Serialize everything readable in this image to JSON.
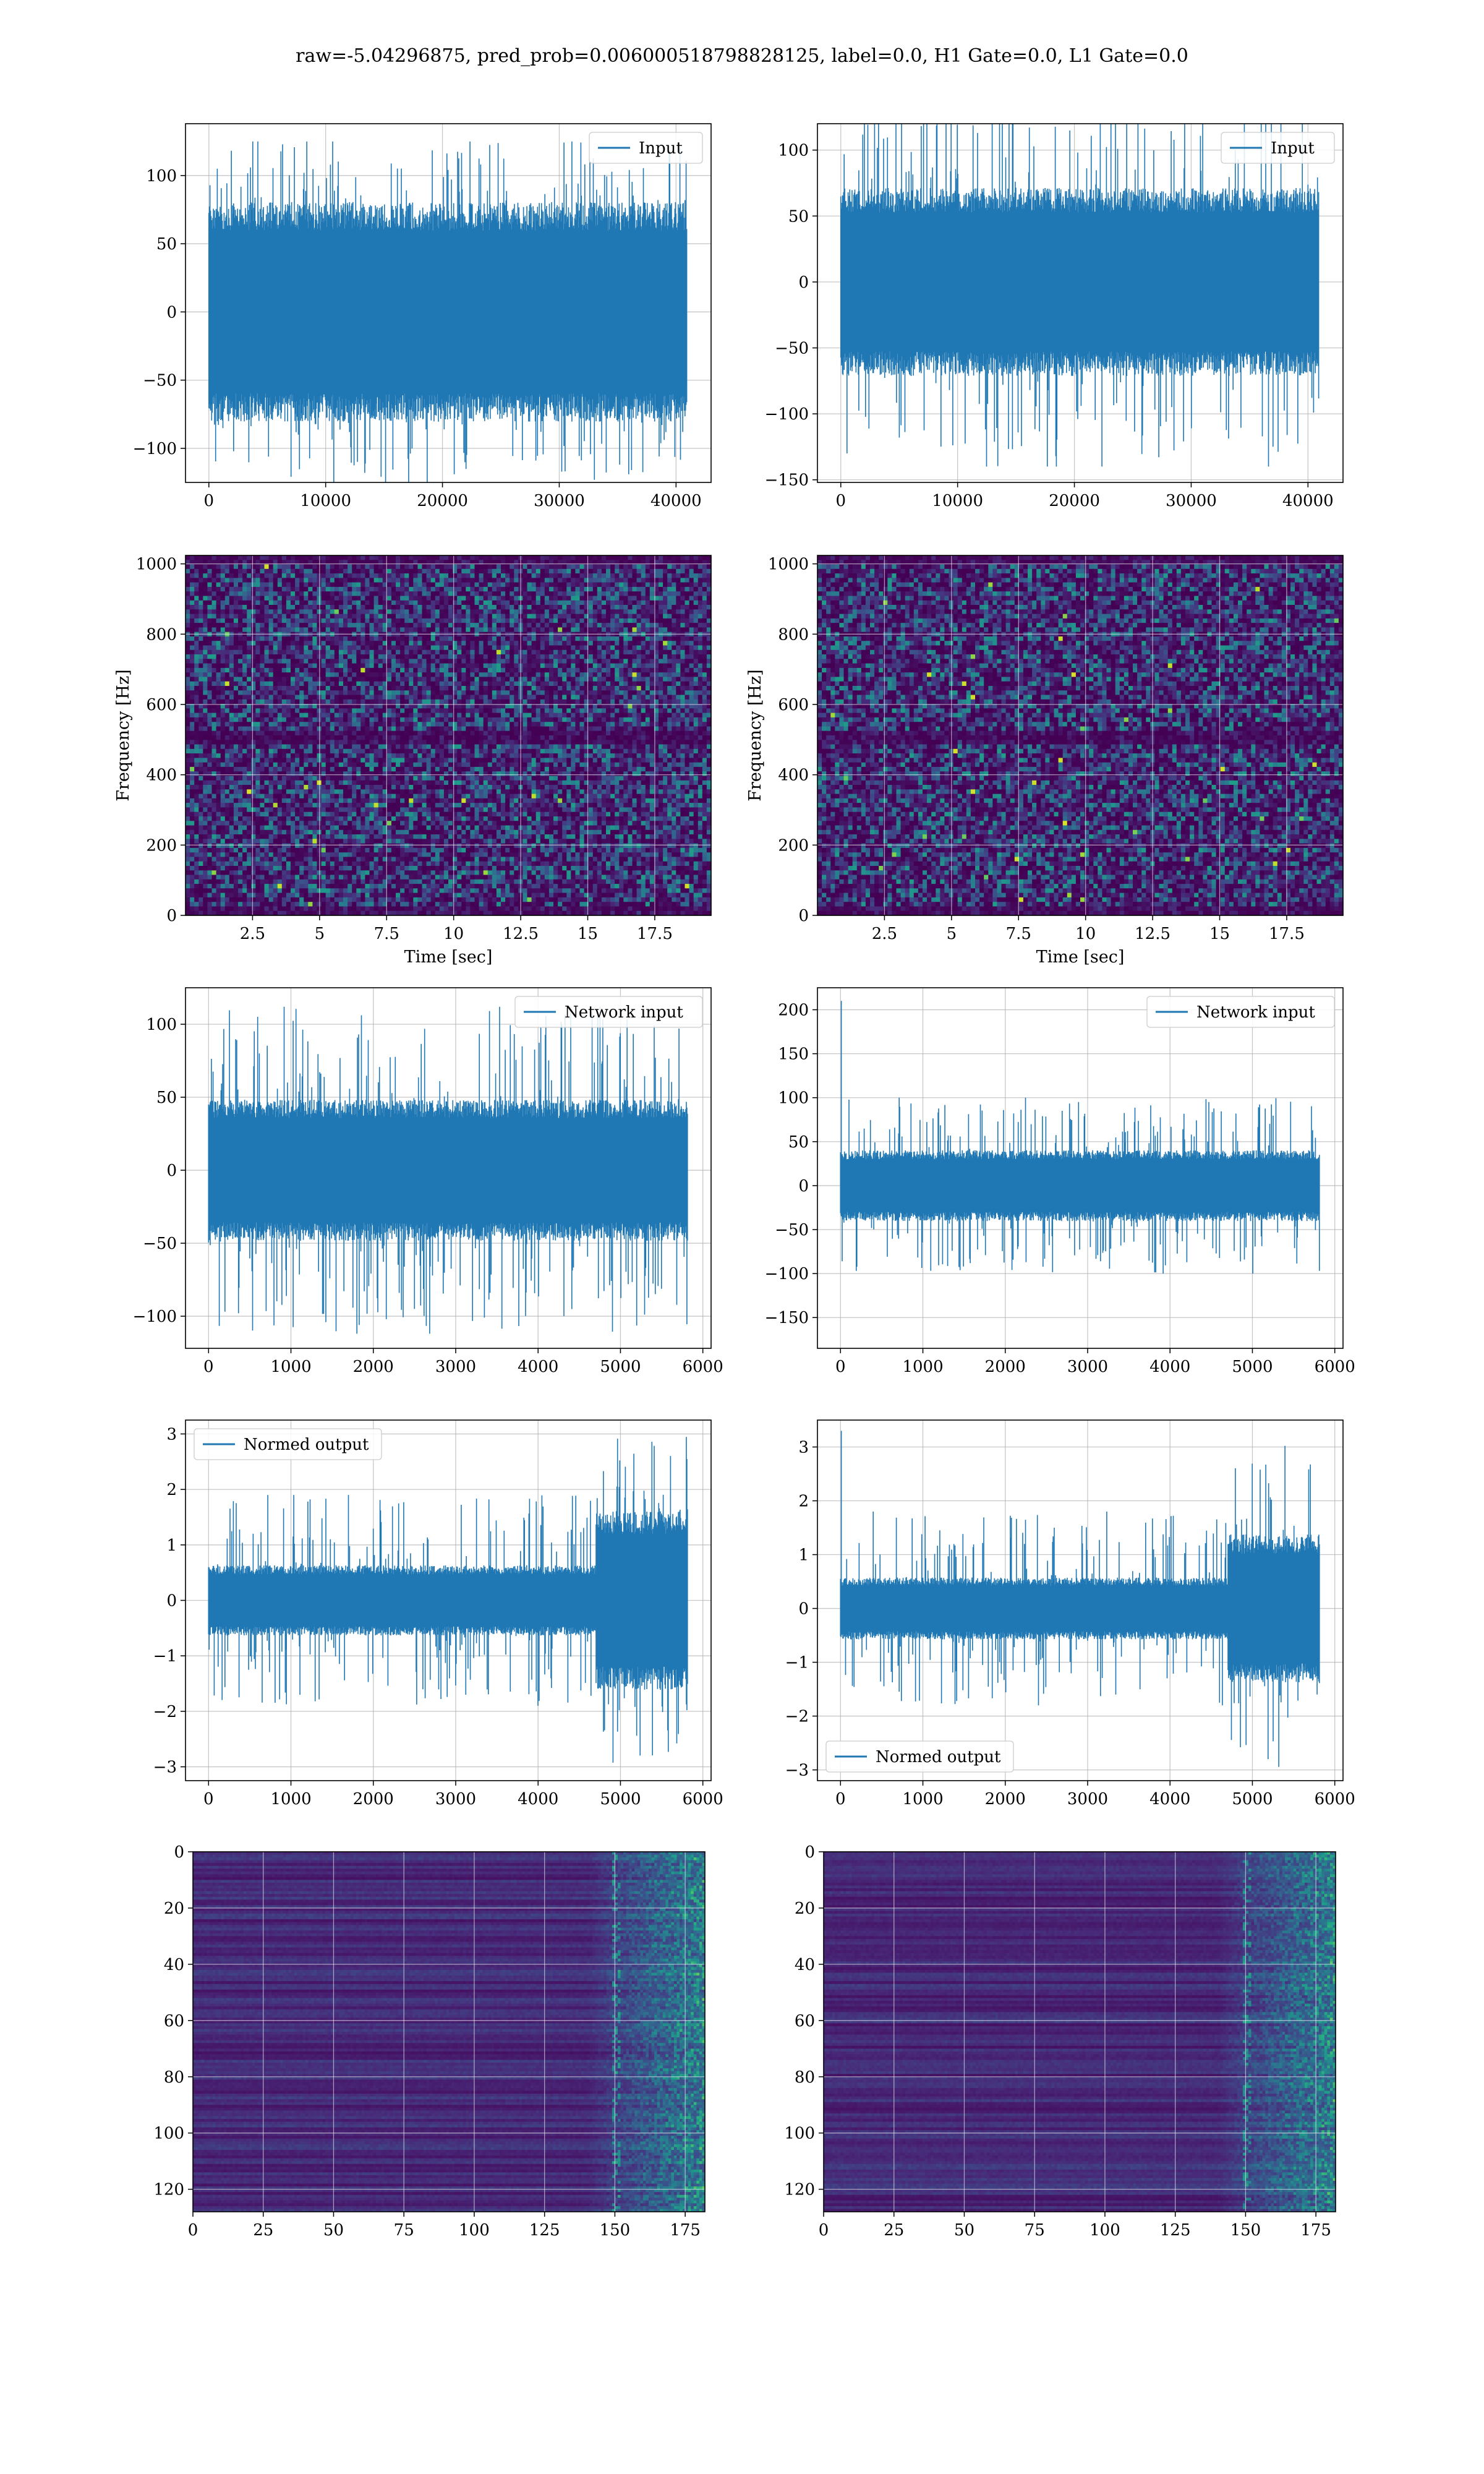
{
  "figure_title": "raw=-5.04296875, pred_prob=0.006000518798828125, label=0.0, H1 Gate=0.0, L1 Gate=0.0",
  "colors": {
    "line": "#1f77b4",
    "grid": "#b0b0b0",
    "viridis_low": "#440154",
    "viridis_high": "#fde725"
  },
  "chart_data": [
    {
      "id": "input-h1",
      "type": "line",
      "xlim": [
        -2000,
        43000
      ],
      "ylim": [
        -125,
        138
      ],
      "xticks": [
        0,
        10000,
        20000,
        30000,
        40000
      ],
      "yticks": [
        -100,
        -50,
        0,
        50,
        100
      ],
      "legend": "Input",
      "legend_loc": "top-right",
      "grid": true,
      "xlabel": "",
      "ylabel": "",
      "signal": {
        "n": 40960,
        "band": 70,
        "peak": 125,
        "bursts": []
      }
    },
    {
      "id": "input-l1",
      "type": "line",
      "xlim": [
        -2000,
        43000
      ],
      "ylim": [
        -152,
        120
      ],
      "xticks": [
        0,
        10000,
        20000,
        30000,
        40000
      ],
      "yticks": [
        -150,
        -100,
        -50,
        0,
        50,
        100
      ],
      "legend": "Input",
      "legend_loc": "top-right",
      "grid": true,
      "xlabel": "",
      "ylabel": "",
      "signal": {
        "n": 40960,
        "band": 62,
        "peak": 140,
        "bursts": []
      }
    },
    {
      "id": "spectrogram-h1",
      "type": "heatmap",
      "xlim": [
        0,
        19.6
      ],
      "ylim": [
        0,
        1024
      ],
      "xticks": [
        2.5,
        5.0,
        7.5,
        10.0,
        12.5,
        15.0,
        17.5
      ],
      "yticks": [
        0,
        200,
        400,
        600,
        800,
        1000
      ],
      "xlabel": "Time [sec]",
      "ylabel": "Frequency [Hz]",
      "grid": true
    },
    {
      "id": "spectrogram-l1",
      "type": "heatmap",
      "xlim": [
        0,
        19.6
      ],
      "ylim": [
        0,
        1024
      ],
      "xticks": [
        2.5,
        5.0,
        7.5,
        10.0,
        12.5,
        15.0,
        17.5
      ],
      "yticks": [
        0,
        200,
        400,
        600,
        800,
        1000
      ],
      "xlabel": "Time [sec]",
      "ylabel": "Frequency [Hz]",
      "grid": true
    },
    {
      "id": "network-input-h1",
      "type": "line",
      "xlim": [
        -280,
        6100
      ],
      "ylim": [
        -122,
        125
      ],
      "xticks": [
        0,
        1000,
        2000,
        3000,
        4000,
        5000,
        6000
      ],
      "yticks": [
        -100,
        -50,
        0,
        50,
        100
      ],
      "legend": "Network input",
      "legend_loc": "top-right",
      "grid": true,
      "xlabel": "",
      "ylabel": "",
      "signal": {
        "n": 5820,
        "band": 42,
        "peak": 112,
        "bursts": []
      }
    },
    {
      "id": "network-input-l1",
      "type": "line",
      "xlim": [
        -280,
        6100
      ],
      "ylim": [
        -185,
        225
      ],
      "xticks": [
        0,
        1000,
        2000,
        3000,
        4000,
        5000,
        6000
      ],
      "yticks": [
        -150,
        -100,
        -50,
        0,
        50,
        100,
        150,
        200
      ],
      "legend": "Network input",
      "legend_loc": "top-right",
      "grid": true,
      "xlabel": "",
      "ylabel": "",
      "signal": {
        "n": 5820,
        "band": 35,
        "peak": 100,
        "spike": [
          10,
          210
        ],
        "bursts": []
      }
    },
    {
      "id": "normed-output-h1",
      "type": "line",
      "xlim": [
        -280,
        6100
      ],
      "ylim": [
        -3.25,
        3.25
      ],
      "xticks": [
        0,
        1000,
        2000,
        3000,
        4000,
        5000,
        6000
      ],
      "yticks": [
        -3,
        -2,
        -1,
        0,
        1,
        2,
        3
      ],
      "legend": "Normed output",
      "legend_loc": "top-left",
      "grid": true,
      "xlabel": "",
      "ylabel": "",
      "signal": {
        "n": 5820,
        "band": 0.55,
        "peak": 1.9,
        "bursts": [
          [
            4700,
            5820,
            1.4,
            2.95
          ]
        ]
      }
    },
    {
      "id": "normed-output-l1",
      "type": "line",
      "xlim": [
        -280,
        6100
      ],
      "ylim": [
        -3.2,
        3.5
      ],
      "xticks": [
        0,
        1000,
        2000,
        3000,
        4000,
        5000,
        6000
      ],
      "yticks": [
        -3,
        -2,
        -1,
        0,
        1,
        2,
        3
      ],
      "legend": "Normed output",
      "legend_loc": "bottom-left",
      "grid": true,
      "xlabel": "",
      "ylabel": "",
      "signal": {
        "n": 5820,
        "band": 0.5,
        "peak": 1.8,
        "spike": [
          10,
          3.3
        ],
        "bursts": [
          [
            4700,
            5820,
            1.2,
            3.1
          ]
        ]
      }
    },
    {
      "id": "features-h1",
      "type": "heatmap",
      "xlim": [
        0,
        182
      ],
      "ylim": [
        128,
        0
      ],
      "xticks": [
        0,
        25,
        50,
        75,
        100,
        125,
        150,
        175
      ],
      "yticks": [
        0,
        20,
        40,
        60,
        80,
        100,
        120
      ],
      "xlabel": "",
      "ylabel": "",
      "grid": true
    },
    {
      "id": "features-l1",
      "type": "heatmap",
      "xlim": [
        0,
        182
      ],
      "ylim": [
        128,
        0
      ],
      "xticks": [
        0,
        25,
        50,
        75,
        100,
        125,
        150,
        175
      ],
      "yticks": [
        0,
        20,
        40,
        60,
        80,
        100,
        120
      ],
      "xlabel": "",
      "ylabel": "",
      "grid": true
    }
  ]
}
